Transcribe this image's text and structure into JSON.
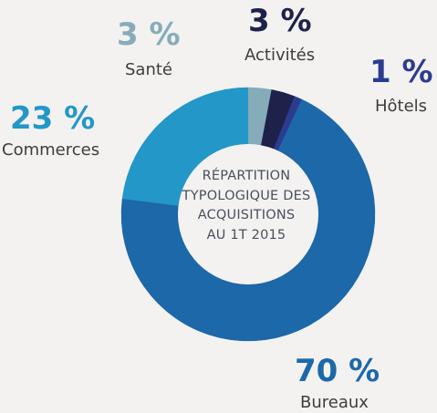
{
  "chart_data": {
    "type": "pie",
    "center_text": [
      "RÉPARTITION",
      "TYPOLOGIQUE DES",
      "ACQUISITIONS",
      "AU 1T 2015"
    ],
    "slices": [
      {
        "name": "Santé",
        "value": 3,
        "label": "3 %",
        "color": "#86acb9"
      },
      {
        "name": "Activités",
        "value": 3,
        "label": "3 %",
        "color": "#1e2149"
      },
      {
        "name": "Hôtels",
        "value": 1,
        "label": "1 %",
        "color": "#2b3c8f"
      },
      {
        "name": "Bureaux",
        "value": 70,
        "label": "70 %",
        "color": "#1c68a9"
      },
      {
        "name": "Commerces",
        "value": 23,
        "label": "23 %",
        "color": "#2397c8"
      }
    ]
  }
}
